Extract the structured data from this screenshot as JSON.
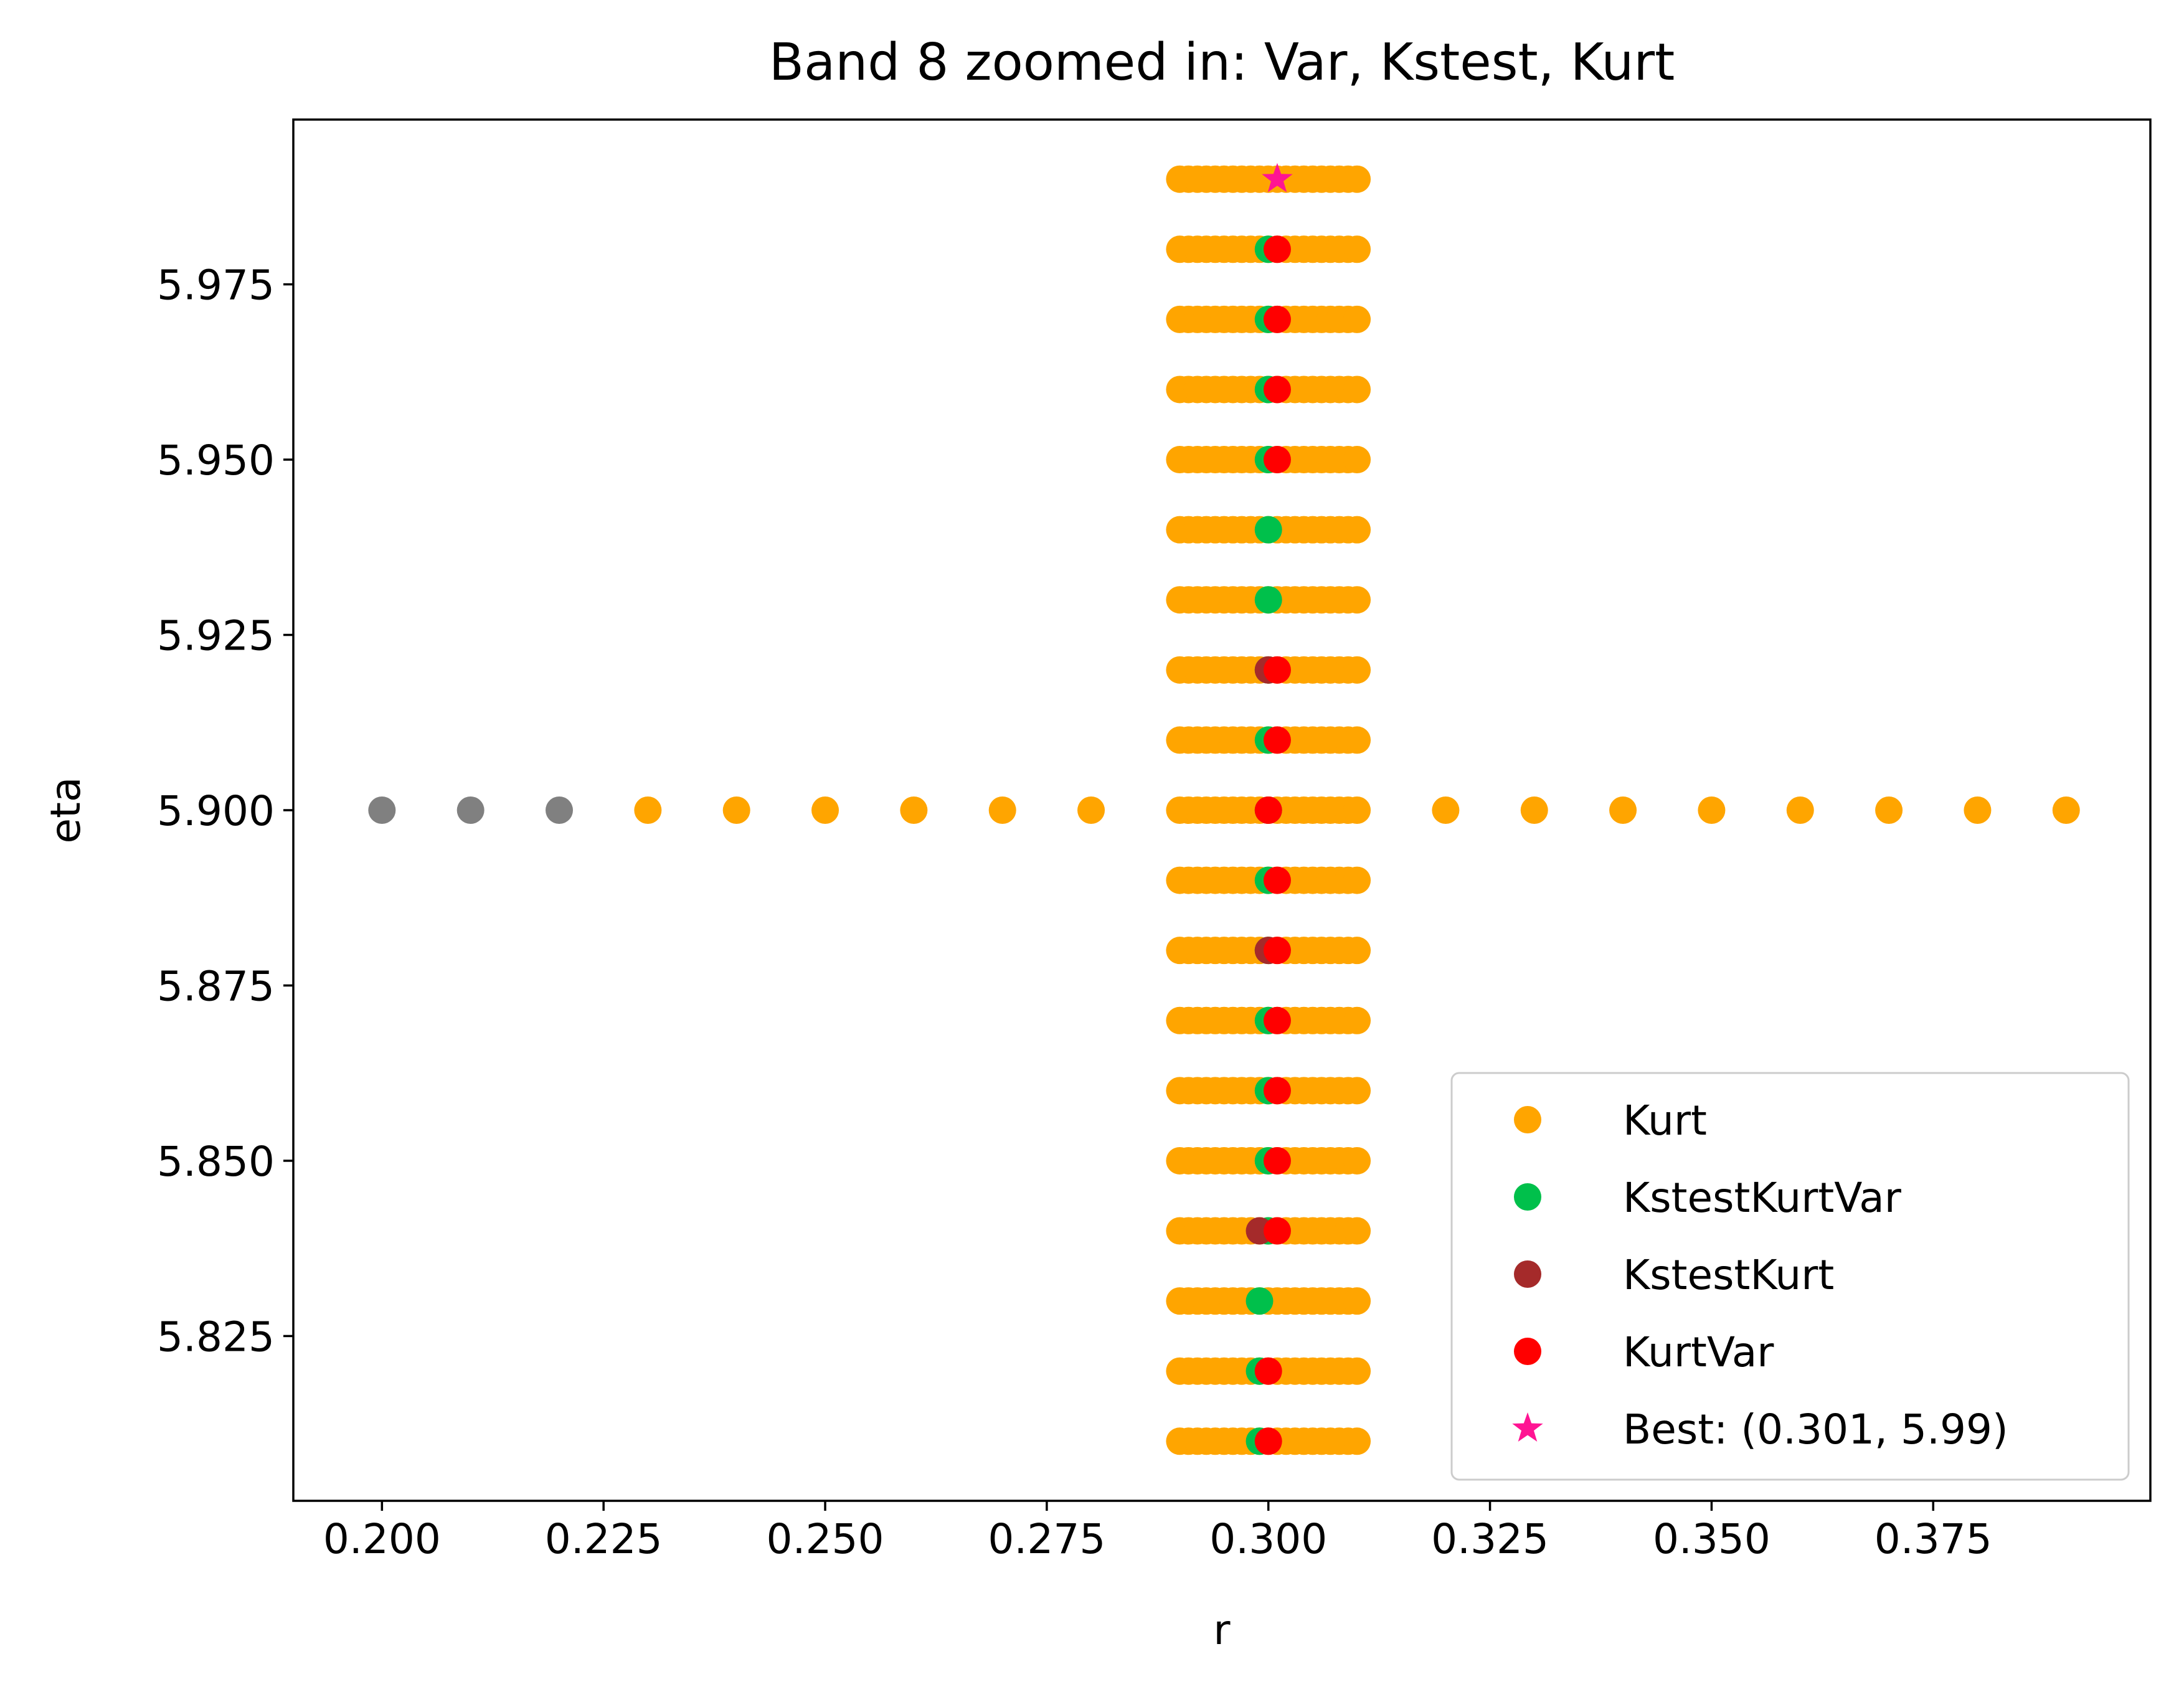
{
  "chart_data": {
    "type": "scatter",
    "title": "Band 8 zoomed in: Var, Kstest, Kurt",
    "xlabel": "r",
    "ylabel": "eta",
    "xlim": [
      0.19,
      0.3995
    ],
    "ylim": [
      5.8015,
      5.9985
    ],
    "x_ticks": [
      0.2,
      0.225,
      0.25,
      0.275,
      0.3,
      0.325,
      0.35,
      0.375
    ],
    "x_tick_labels": [
      "0.200",
      "0.225",
      "0.250",
      "0.275",
      "0.300",
      "0.325",
      "0.350",
      "0.375"
    ],
    "y_ticks": [
      5.825,
      5.85,
      5.875,
      5.9,
      5.925,
      5.95,
      5.975
    ],
    "y_tick_labels": [
      "5.825",
      "5.850",
      "5.875",
      "5.900",
      "5.925",
      "5.950",
      "5.975"
    ],
    "grid": false,
    "legend_position": "lower-right",
    "colors": {
      "gray": "#808080",
      "kurt": "#FFA500",
      "kstest_kurt_var": "#00C04B",
      "kstest_kurt": "#A52A2A",
      "kurt_var": "#FF0000",
      "best": "#FF1493"
    },
    "grid_block": {
      "r_values": [
        0.29,
        0.291,
        0.292,
        0.293,
        0.294,
        0.295,
        0.296,
        0.297,
        0.298,
        0.299,
        0.3,
        0.301,
        0.302,
        0.303,
        0.304,
        0.305,
        0.306,
        0.307,
        0.308,
        0.309,
        0.31
      ],
      "eta_values": [
        5.81,
        5.82,
        5.83,
        5.84,
        5.85,
        5.86,
        5.87,
        5.88,
        5.89,
        5.9,
        5.91,
        5.92,
        5.93,
        5.94,
        5.95,
        5.96,
        5.97,
        5.98,
        5.99
      ]
    },
    "series": [
      {
        "name": "",
        "color": "#808080",
        "marker": "circle",
        "points": [
          [
            0.2,
            5.9
          ],
          [
            0.21,
            5.9
          ],
          [
            0.22,
            5.9
          ]
        ]
      },
      {
        "name": "Kurt",
        "color": "#FFA500",
        "marker": "circle",
        "points": [
          [
            0.23,
            5.9
          ],
          [
            0.24,
            5.9
          ],
          [
            0.25,
            5.9
          ],
          [
            0.26,
            5.9
          ],
          [
            0.27,
            5.9
          ],
          [
            0.28,
            5.9
          ],
          [
            0.32,
            5.9
          ],
          [
            0.33,
            5.9
          ],
          [
            0.34,
            5.9
          ],
          [
            0.35,
            5.9
          ],
          [
            0.36,
            5.9
          ],
          [
            0.37,
            5.9
          ],
          [
            0.38,
            5.9
          ],
          [
            0.39,
            5.9
          ]
        ]
      },
      {
        "name": "KstestKurtVar",
        "color": "#00C04B",
        "marker": "circle",
        "points": [
          [
            0.299,
            5.81
          ],
          [
            0.299,
            5.82
          ],
          [
            0.299,
            5.83
          ],
          [
            0.3,
            5.84
          ],
          [
            0.3,
            5.85
          ],
          [
            0.3,
            5.86
          ],
          [
            0.3,
            5.87
          ],
          [
            0.3,
            5.88
          ],
          [
            0.3,
            5.89
          ],
          [
            0.3,
            5.9
          ],
          [
            0.3,
            5.91
          ],
          [
            0.3,
            5.92
          ],
          [
            0.3,
            5.93
          ],
          [
            0.3,
            5.94
          ],
          [
            0.3,
            5.95
          ],
          [
            0.3,
            5.96
          ],
          [
            0.3,
            5.97
          ],
          [
            0.3,
            5.98
          ]
        ]
      },
      {
        "name": "KstestKurt",
        "color": "#A52A2A",
        "marker": "circle",
        "points": [
          [
            0.299,
            5.84
          ],
          [
            0.3,
            5.88
          ],
          [
            0.3,
            5.92
          ]
        ]
      },
      {
        "name": "KurtVar",
        "color": "#FF0000",
        "marker": "circle",
        "points": [
          [
            0.3,
            5.81
          ],
          [
            0.3,
            5.82
          ],
          [
            0.301,
            5.84
          ],
          [
            0.301,
            5.85
          ],
          [
            0.301,
            5.86
          ],
          [
            0.301,
            5.87
          ],
          [
            0.301,
            5.88
          ],
          [
            0.301,
            5.89
          ],
          [
            0.3,
            5.9
          ],
          [
            0.301,
            5.91
          ],
          [
            0.301,
            5.92
          ],
          [
            0.301,
            5.95
          ],
          [
            0.301,
            5.96
          ],
          [
            0.301,
            5.97
          ],
          [
            0.301,
            5.98
          ]
        ]
      },
      {
        "name": "Best: (0.301, 5.99)",
        "color": "#FF1493",
        "marker": "star",
        "points": [
          [
            0.301,
            5.99
          ]
        ]
      }
    ]
  }
}
